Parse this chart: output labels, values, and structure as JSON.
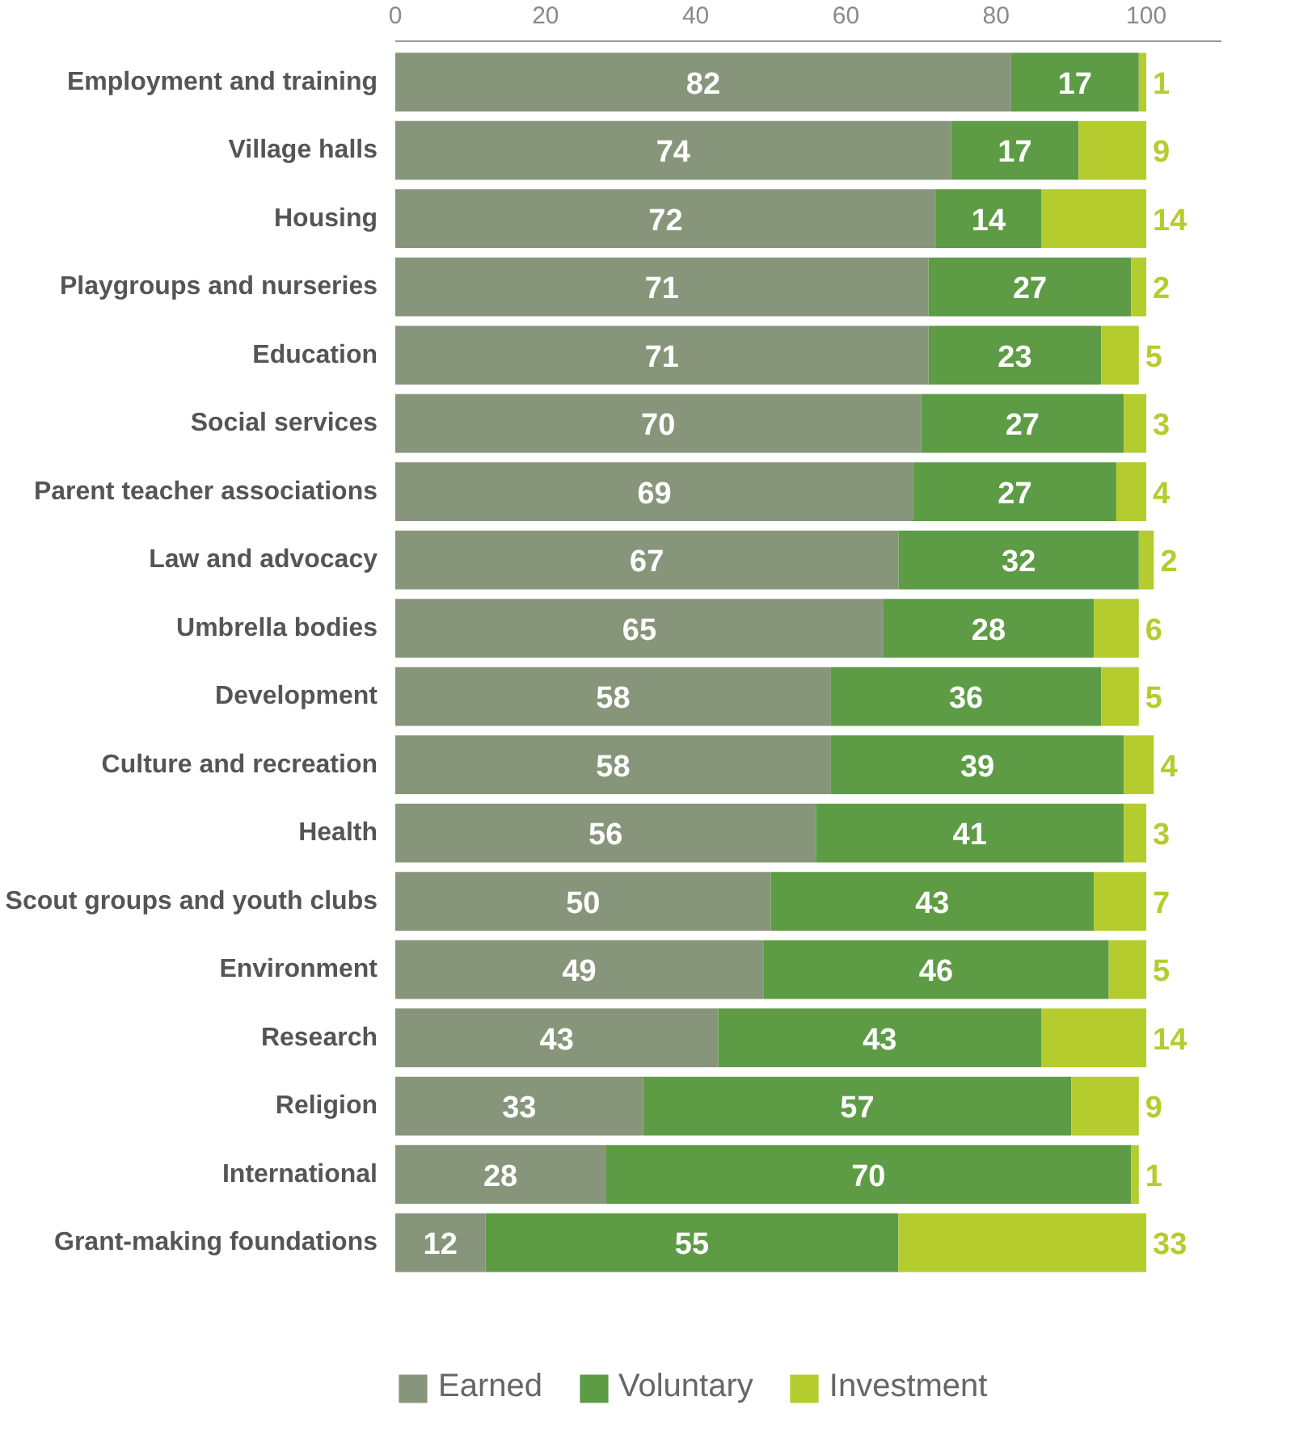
{
  "chart_data": {
    "type": "bar",
    "orientation": "horizontal",
    "stacked": true,
    "data_labels": true,
    "grid": false,
    "legend": "bottom",
    "categories": [
      "Employment and training",
      "Village halls",
      "Housing",
      "Playgroups and nurseries",
      "Education",
      "Social services",
      "Parent teacher associations",
      "Law and advocacy",
      "Umbrella bodies",
      "Development",
      "Culture and recreation",
      "Health",
      "Scout groups and youth clubs",
      "Environment",
      "Research",
      "Religion",
      "International",
      "Grant-making foundations"
    ],
    "series": [
      {
        "name": "Earned",
        "color": "#87967a",
        "values": [
          82,
          74,
          72,
          71,
          71,
          70,
          69,
          67,
          65,
          58,
          58,
          56,
          50,
          49,
          43,
          33,
          28,
          12
        ]
      },
      {
        "name": "Voluntary",
        "color": "#5e9b45",
        "values": [
          17,
          17,
          14,
          27,
          23,
          27,
          27,
          32,
          28,
          36,
          39,
          41,
          43,
          46,
          43,
          57,
          70,
          55
        ]
      },
      {
        "name": "Investment",
        "color": "#b5cc2e",
        "values": [
          1,
          9,
          14,
          2,
          5,
          3,
          4,
          2,
          6,
          5,
          4,
          3,
          7,
          5,
          14,
          9,
          1,
          33
        ]
      }
    ],
    "xlim": [
      0,
      110
    ],
    "xticks": [
      0,
      20,
      40,
      60,
      80,
      100
    ]
  }
}
